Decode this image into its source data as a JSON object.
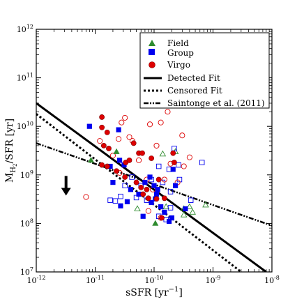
{
  "chart_data": {
    "type": "scatter",
    "xscale": "log",
    "yscale": "log",
    "xlim": [
      1e-12,
      1e-08
    ],
    "ylim": [
      10000000.0,
      1000000000000.0
    ],
    "xlabel_main": "sSFR [yr",
    "xlabel_sup": "−1",
    "xlabel_end": "]",
    "ylabel_main": "M",
    "ylabel_sub": "H",
    "ylabel_subsub": "2",
    "ylabel_end": "/SFR [yr]",
    "xticks": [
      {
        "base": "10",
        "exp": "-12",
        "value": 1e-12
      },
      {
        "base": "10",
        "exp": "-11",
        "value": 1e-11
      },
      {
        "base": "10",
        "exp": "-10",
        "value": 1e-10
      },
      {
        "base": "10",
        "exp": "-9",
        "value": 1e-09
      },
      {
        "base": "10",
        "exp": "-8",
        "value": 1e-08
      }
    ],
    "yticks": [
      {
        "base": "10",
        "exp": "7",
        "value": 10000000.0
      },
      {
        "base": "10",
        "exp": "8",
        "value": 100000000.0
      },
      {
        "base": "10",
        "exp": "9",
        "value": 1000000000.0
      },
      {
        "base": "10",
        "exp": "10",
        "value": 10000000000.0
      },
      {
        "base": "10",
        "exp": "11",
        "value": 100000000000.0
      },
      {
        "base": "10",
        "exp": "12",
        "value": 1000000000000.0
      }
    ],
    "legend_position": "top-right",
    "legend": [
      {
        "label": "Field",
        "kind": "marker",
        "shape": "triangle",
        "color": "#2e8b2e"
      },
      {
        "label": "Group",
        "kind": "marker",
        "shape": "square",
        "color": "#0000ee"
      },
      {
        "label": "Virgo",
        "kind": "marker",
        "shape": "circle",
        "color": "#dd0000"
      },
      {
        "label": "Detected Fit",
        "kind": "line",
        "dash": "solid"
      },
      {
        "label": "Censored Fit",
        "kind": "line",
        "dash": "dotted"
      },
      {
        "label": "Saintonge et al. (2011)",
        "kind": "line",
        "dash": "dashdot"
      }
    ],
    "lines": [
      {
        "name": "Detected Fit",
        "dash": "solid",
        "points": [
          [
            1e-12,
            30000000000.0
          ],
          [
            8e-09,
            10000000.0
          ]
        ]
      },
      {
        "name": "Censored Fit",
        "dash": "dotted",
        "points": [
          [
            1e-12,
            18000000000.0
          ],
          [
            3e-09,
            10000000.0
          ]
        ]
      },
      {
        "name": "Saintonge et al. (2011)",
        "dash": "dashdot",
        "points": [
          [
            1e-12,
            4500000000.0
          ],
          [
            1e-08,
            90000000.0
          ]
        ]
      }
    ],
    "annotation_arrow": {
      "x": 3.2e-12,
      "y_from": 950000000.0,
      "y_to": 400000000.0,
      "meaning": "upper limit"
    },
    "colors": {
      "field": "#2e8b2e",
      "group": "#0000ee",
      "virgo": "#dd0000"
    },
    "series": [
      {
        "name": "Field",
        "marker": "triangle",
        "color": "#2e8b2e",
        "filled": [
          [
            8.5e-12,
            2000000000.0
          ],
          [
            2.3e-11,
            3000000000.0
          ],
          [
            1.05e-10,
            100000000.0
          ]
        ],
        "open": [
          [
            5.2e-11,
            200000000.0
          ],
          [
            1.4e-10,
            2700000000.0
          ],
          [
            2.3e-10,
            3000000000.0
          ],
          [
            1.6e-10,
            220000000.0
          ],
          [
            3.2e-10,
            150000000.0
          ],
          [
            4e-10,
            220000000.0
          ],
          [
            4.5e-10,
            170000000.0
          ],
          [
            7.5e-10,
            240000000.0
          ],
          [
            3.2e-10,
            200000000.0
          ]
        ]
      },
      {
        "name": "Group",
        "marker": "square",
        "color": "#0000ee",
        "filled": [
          [
            8e-12,
            10000000000.0
          ],
          [
            2.5e-11,
            8500000000.0
          ],
          [
            2.6e-11,
            2000000000.0
          ],
          [
            3.1e-11,
            1600000000.0
          ],
          [
            1.8e-11,
            1500000000.0
          ],
          [
            2e-11,
            700000000.0
          ],
          [
            4e-11,
            500000000.0
          ],
          [
            5.5e-11,
            400000000.0
          ],
          [
            7e-11,
            700000000.0
          ],
          [
            8.5e-11,
            900000000.0
          ],
          [
            1e-10,
            600000000.0
          ],
          [
            1.1e-10,
            400000000.0
          ],
          [
            1.05e-10,
            320000000.0
          ],
          [
            9e-11,
            270000000.0
          ],
          [
            6.5e-11,
            140000000.0
          ],
          [
            3.5e-11,
            280000000.0
          ],
          [
            2.7e-11,
            230000000.0
          ],
          [
            1.3e-10,
            220000000.0
          ],
          [
            1.5e-10,
            170000000.0
          ],
          [
            1.8e-10,
            110000000.0
          ],
          [
            2e-10,
            130000000.0
          ],
          [
            2.1e-10,
            1300000000.0
          ],
          [
            2.3e-10,
            600000000.0
          ],
          [
            3.4e-10,
            200000000.0
          ],
          [
            1.15e-10,
            500000000.0
          ]
        ],
        "open": [
          [
            1.8e-11,
            300000000.0
          ],
          [
            2.2e-11,
            290000000.0
          ],
          [
            2.7e-11,
            360000000.0
          ],
          [
            3.2e-11,
            600000000.0
          ],
          [
            4.2e-11,
            900000000.0
          ],
          [
            5e-11,
            340000000.0
          ],
          [
            6e-11,
            600000000.0
          ],
          [
            7.5e-11,
            300000000.0
          ],
          [
            9e-11,
            800000000.0
          ],
          [
            1.2e-10,
            1500000000.0
          ],
          [
            1.4e-10,
            700000000.0
          ],
          [
            1.6e-10,
            120000000.0
          ],
          [
            2.2e-10,
            3500000000.0
          ],
          [
            2.6e-10,
            1600000000.0
          ],
          [
            2.7e-10,
            800000000.0
          ],
          [
            1.9e-10,
            210000000.0
          ],
          [
            1.2e-10,
            140000000.0
          ],
          [
            1.8e-10,
            1300000000.0
          ],
          [
            4.2e-10,
            300000000.0
          ],
          [
            6.5e-10,
            1800000000.0
          ],
          [
            1.9e-10,
            450000000.0
          ]
        ]
      },
      {
        "name": "Virgo",
        "marker": "circle",
        "color": "#dd0000",
        "filled": [
          [
            1.3e-11,
            15500000000.0
          ],
          [
            1.3e-11,
            9500000000.0
          ],
          [
            1.6e-11,
            7500000000.0
          ],
          [
            1.4e-11,
            4000000000.0
          ],
          [
            1.7e-11,
            3500000000.0
          ],
          [
            1.3e-11,
            1600000000.0
          ],
          [
            1.6e-11,
            1500000000.0
          ],
          [
            2.3e-11,
            1200000000.0
          ],
          [
            3.3e-11,
            1800000000.0
          ],
          [
            3.2e-11,
            900000000.0
          ],
          [
            4.5e-11,
            4500000000.0
          ],
          [
            5.5e-11,
            2800000000.0
          ],
          [
            6.3e-11,
            2800000000.0
          ],
          [
            3.8e-11,
            2000000000.0
          ],
          [
            5e-11,
            700000000.0
          ],
          [
            6e-11,
            550000000.0
          ],
          [
            6.5e-11,
            400000000.0
          ],
          [
            7.5e-11,
            500000000.0
          ],
          [
            9e-11,
            2200000000.0
          ],
          [
            1.2e-10,
            800000000.0
          ],
          [
            1.5e-10,
            330000000.0
          ],
          [
            2.1e-10,
            2800000000.0
          ],
          [
            1.35e-10,
            130000000.0
          ],
          [
            2.2e-10,
            1800000000.0
          ],
          [
            8e-11,
            330000000.0
          ],
          [
            1.1e-10,
            320000000.0
          ]
        ],
        "open": [
          [
            7e-12,
            350000000.0
          ],
          [
            1.2e-11,
            5000000000.0
          ],
          [
            2e-11,
            2500000000.0
          ],
          [
            2.5e-11,
            5500000000.0
          ],
          [
            2.8e-11,
            12000000000.0
          ],
          [
            3.2e-11,
            15000000000.0
          ],
          [
            3.8e-11,
            6000000000.0
          ],
          [
            4.3e-11,
            5000000000.0
          ],
          [
            5.5e-11,
            2000000000.0
          ],
          [
            7.5e-11,
            800000000.0
          ],
          [
            8.5e-11,
            11000000000.0
          ],
          [
            1.1e-10,
            4000000000.0
          ],
          [
            1.3e-10,
            12000000000.0
          ],
          [
            1.7e-10,
            20000000000.0
          ],
          [
            1.9e-10,
            1700000000.0
          ],
          [
            1.5e-10,
            800000000.0
          ],
          [
            9.5e-11,
            500000000.0
          ],
          [
            1.3e-10,
            130000000.0
          ],
          [
            3.2e-10,
            1500000000.0
          ],
          [
            2.5e-10,
            700000000.0
          ],
          [
            4e-10,
            2300000000.0
          ],
          [
            3e-10,
            6500000000.0
          ],
          [
            2.6e-11,
            1100000000.0
          ],
          [
            8e-11,
            180000000.0
          ]
        ]
      }
    ]
  }
}
